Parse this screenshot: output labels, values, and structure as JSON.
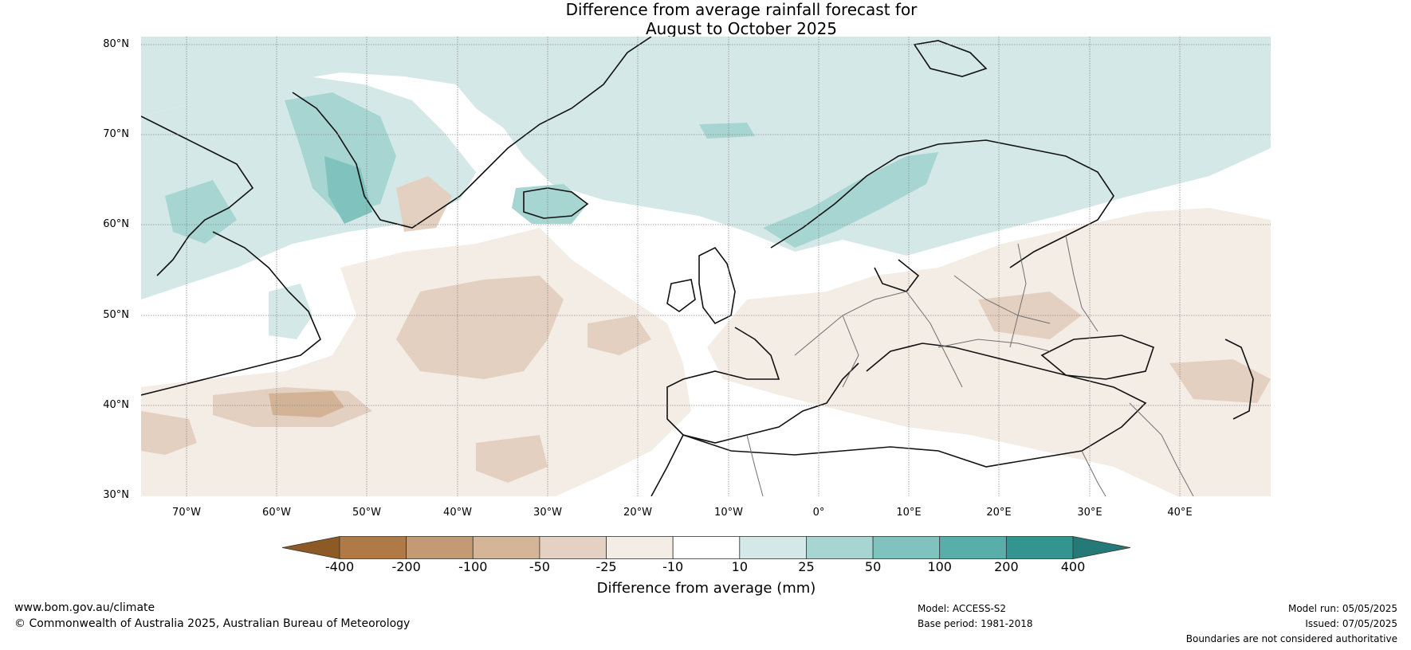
{
  "title": {
    "line1": "Difference from average rainfall forecast for",
    "line2": "August to October 2025"
  },
  "latitude_labels": [
    "80°N",
    "70°N",
    "60°N",
    "50°N",
    "40°N",
    "30°N"
  ],
  "longitude_labels": [
    "70°W",
    "60°W",
    "50°W",
    "40°W",
    "30°W",
    "20°W",
    "10°W",
    "0°",
    "10°E",
    "20°E",
    "30°E",
    "40°E"
  ],
  "map": {
    "extent": {
      "lon_min": -75,
      "lon_max": 50,
      "lat_min": 30,
      "lat_max": 81
    },
    "palette": {
      "wet_10_25": "#d4e9e7",
      "wet_25_50": "#a7d5d2",
      "wet_50_100": "#80c2bd",
      "dry_10_25": "#f4ede6",
      "dry_25_50": "#e4d0c0",
      "dry_50_100": "#d3b396",
      "coast": "#111111",
      "border": "#707070",
      "grid": "#8a8a8a"
    }
  },
  "colorbar": {
    "ticks": [
      "-400",
      "-200",
      "-100",
      "-50",
      "-25",
      "-10",
      "10",
      "25",
      "50",
      "100",
      "200",
      "400"
    ],
    "colors": [
      "#8d5a25",
      "#b07a46",
      "#c39a74",
      "#d4b597",
      "#e5d1c1",
      "#f4ede6",
      "#ffffff",
      "#d4e9e7",
      "#a7d5d2",
      "#80c2bd",
      "#5aaeaa",
      "#34948f",
      "#257a78"
    ],
    "label": "Difference from average (mm)"
  },
  "footer": {
    "website": "www.bom.gov.au/climate",
    "copyright": "© Commonwealth of Australia 2025, Australian Bureau of Meteorology",
    "model": "Model: ACCESS-S2",
    "base_period": "Base period: 1981-2018",
    "model_run": "Model run: 05/05/2025",
    "issued": "Issued: 07/05/2025",
    "disclaimer": "Boundaries are not considered authoritative"
  }
}
